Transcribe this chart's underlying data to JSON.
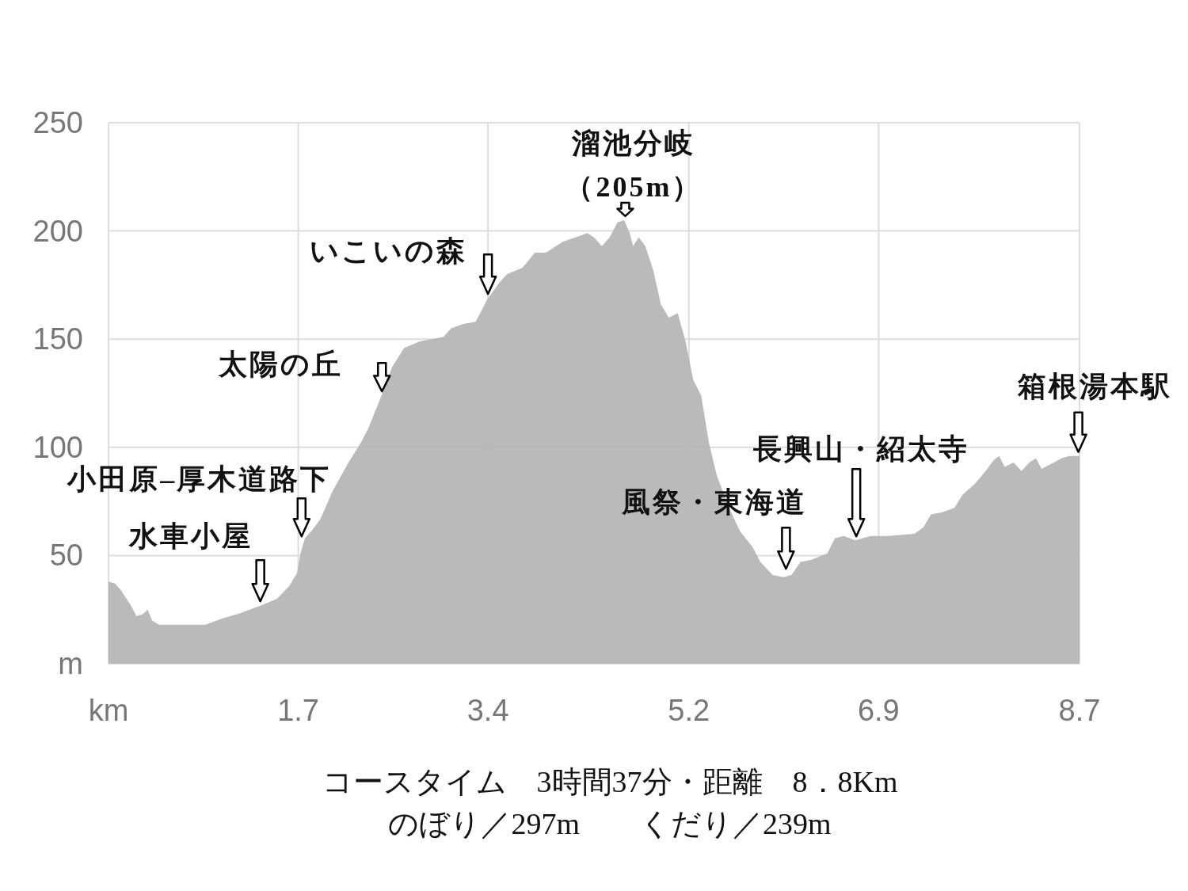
{
  "chart_data": {
    "type": "area",
    "x": [
      0.0,
      0.06,
      0.11,
      0.2,
      0.25,
      0.31,
      0.35,
      0.39,
      0.45,
      0.59,
      0.87,
      1.02,
      1.16,
      1.37,
      1.51,
      1.62,
      1.69,
      1.72,
      1.76,
      1.83,
      1.9,
      2.01,
      2.15,
      2.26,
      2.33,
      2.4,
      2.47,
      2.54,
      2.65,
      2.79,
      3.0,
      3.07,
      3.18,
      3.29,
      3.39,
      3.5,
      3.57,
      3.71,
      3.82,
      3.92,
      4.07,
      4.24,
      4.29,
      4.35,
      4.42,
      4.49,
      4.56,
      4.62,
      4.67,
      4.7,
      4.75,
      4.81,
      4.88,
      4.95,
      5.02,
      5.1,
      5.17,
      5.24,
      5.31,
      5.38,
      5.45,
      5.56,
      5.66,
      5.77,
      5.84,
      5.95,
      6.05,
      6.12,
      6.2,
      6.3,
      6.44,
      6.51,
      6.59,
      6.69,
      6.83,
      6.98,
      7.22,
      7.3,
      7.37,
      7.47,
      7.58,
      7.65,
      7.76,
      7.86,
      7.93,
      7.98,
      8.03,
      8.11,
      8.18,
      8.25,
      8.31,
      8.36,
      8.47,
      8.54,
      8.61,
      8.7
    ],
    "series": [
      {
        "color": "#b4b4b4",
        "values": [
          38,
          37,
          34,
          27,
          22,
          23,
          25,
          20,
          18,
          18,
          18,
          21,
          23,
          27,
          30,
          36,
          42,
          51,
          58,
          62,
          67,
          80,
          93,
          102,
          109,
          118,
          127,
          137,
          146,
          149,
          151,
          155,
          157,
          158,
          168,
          176,
          180,
          183,
          190,
          190,
          195,
          198,
          199,
          197,
          193,
          197,
          204,
          205,
          199,
          193,
          197,
          193,
          182,
          166,
          160,
          162,
          149,
          131,
          124,
          102,
          87,
          72,
          61,
          54,
          47,
          41,
          40,
          41,
          47,
          48,
          51,
          58,
          59,
          57,
          59,
          59,
          60,
          63,
          69,
          70,
          72,
          78,
          83,
          89,
          94,
          96,
          91,
          93,
          89,
          93,
          95,
          90,
          93,
          95,
          96,
          96
        ]
      }
    ],
    "xlim": [
      0,
      8.7
    ],
    "xticks": [
      {
        "value": 0,
        "label": "km"
      },
      1.7,
      3.4,
      5.2,
      6.9,
      8.7
    ],
    "ylim": [
      0,
      250
    ],
    "yticks": [
      {
        "value": 0,
        "label": "m"
      },
      50,
      100,
      150,
      200,
      250
    ],
    "grid": true,
    "annotations": [
      {
        "text": "水車小屋",
        "x": 1.36,
        "y": 27
      },
      {
        "text": "小田原–厚木道路下",
        "x": 1.73,
        "y": 57
      },
      {
        "text": "太陽の丘",
        "x": 2.45,
        "y": 124
      },
      {
        "text": "いこいの森",
        "x": 3.4,
        "y": 169
      },
      {
        "text": "溜池分岐（205m）",
        "x": 4.63,
        "y": 205
      },
      {
        "text": "風祭・東海道",
        "x": 6.07,
        "y": 42
      },
      {
        "text": "長興山・紹太寺",
        "x": 6.7,
        "y": 57
      },
      {
        "text": "箱根湯本駅",
        "x": 8.69,
        "y": 96
      },
      "コースタイム　3時間37分・距離　8．8Km",
      "のぼり／297m　　くだり／239m"
    ]
  }
}
